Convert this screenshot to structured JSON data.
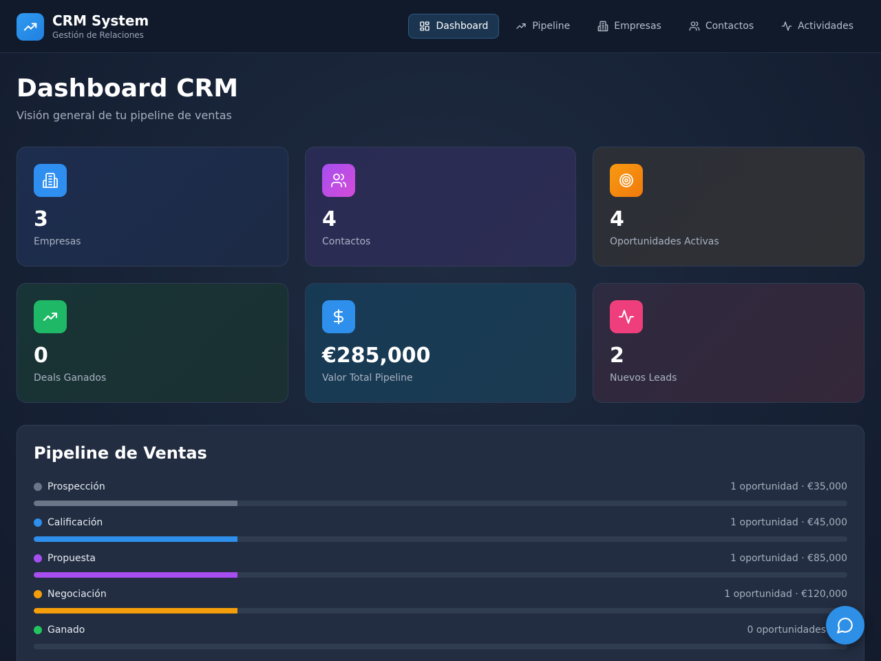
{
  "brand": {
    "title": "CRM System",
    "subtitle": "Gestión de Relaciones",
    "icon": "trending-up-icon"
  },
  "nav": {
    "items": [
      {
        "label": "Dashboard",
        "icon": "dashboard-grid-icon",
        "active": true
      },
      {
        "label": "Pipeline",
        "icon": "trending-up-icon",
        "active": false
      },
      {
        "label": "Empresas",
        "icon": "building-icon",
        "active": false
      },
      {
        "label": "Contactos",
        "icon": "users-icon",
        "active": false
      },
      {
        "label": "Actividades",
        "icon": "activity-icon",
        "active": false
      }
    ]
  },
  "page": {
    "title": "Dashboard CRM",
    "subtitle": "Visión general de tu pipeline de ventas"
  },
  "stats": [
    {
      "value": "3",
      "label": "Empresas",
      "icon": "building-icon",
      "color": "#2f8ff0"
    },
    {
      "value": "4",
      "label": "Contactos",
      "icon": "users-icon",
      "color": "#b54be8"
    },
    {
      "value": "4",
      "label": "Oportunidades Activas",
      "icon": "target-icon",
      "color": "#f5840e"
    },
    {
      "value": "0",
      "label": "Deals Ganados",
      "icon": "trending-up-icon",
      "color": "#1fb866"
    },
    {
      "value": "€285,000",
      "label": "Valor Total Pipeline",
      "icon": "dollar-icon",
      "color": "#2e90ec"
    },
    {
      "value": "2",
      "label": "Nuevos Leads",
      "icon": "activity-icon",
      "color": "#ee3f7c"
    }
  ],
  "pipeline": {
    "title": "Pipeline de Ventas",
    "stages": [
      {
        "name": "Prospección",
        "info": "1 oportunidad · €35,000",
        "color": "#6b7689",
        "fraction": 0.25
      },
      {
        "name": "Calificación",
        "info": "1 oportunidad · €45,000",
        "color": "#2e90ec",
        "fraction": 0.25
      },
      {
        "name": "Propuesta",
        "info": "1 oportunidad · €85,000",
        "color": "#a64ef0",
        "fraction": 0.25
      },
      {
        "name": "Negociación",
        "info": "1 oportunidad · €120,000",
        "color": "#f59e0b",
        "fraction": 0.25
      },
      {
        "name": "Ganado",
        "info": "0 oportunidades",
        "color": "#22c55e",
        "fraction": 0
      }
    ]
  },
  "chat": {
    "icon": "chat-bubble-icon"
  }
}
